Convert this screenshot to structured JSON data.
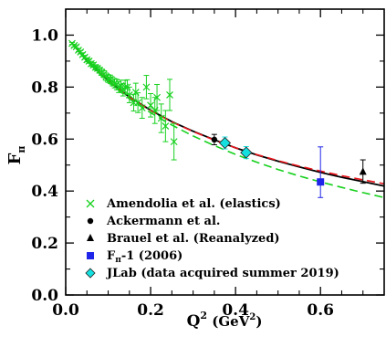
{
  "chart_data": {
    "type": "scatter",
    "xlabel": {
      "base": "Q",
      "sup": "2",
      "units_open": " (GeV",
      "units_sup": "2",
      "units_close": ")"
    },
    "ylabel": {
      "base": "F",
      "sub": "π"
    },
    "xlim": [
      0,
      0.75
    ],
    "ylim": [
      0,
      1.1
    ],
    "x_ticks": [
      0.0,
      0.2,
      0.4,
      0.6
    ],
    "x_tick_labels": [
      "0.0",
      "0.2",
      "0.4",
      "0.6"
    ],
    "y_ticks": [
      0.0,
      0.2,
      0.4,
      0.6,
      0.8,
      1.0
    ],
    "y_tick_labels": [
      "0.0",
      "0.2",
      "0.4",
      "0.6",
      "0.8",
      "1.0"
    ],
    "grid": false,
    "legend_position": "bottom-left",
    "curves": [
      {
        "id": "black-solid",
        "color": "#000000",
        "style": "solid",
        "x": [
          0.015,
          0.05,
          0.1,
          0.15,
          0.2,
          0.25,
          0.3,
          0.35,
          0.4,
          0.45,
          0.5,
          0.55,
          0.6,
          0.65,
          0.7,
          0.75
        ],
        "y": [
          0.968,
          0.901,
          0.825,
          0.762,
          0.711,
          0.667,
          0.63,
          0.597,
          0.566,
          0.539,
          0.515,
          0.493,
          0.472,
          0.453,
          0.436,
          0.419
        ]
      },
      {
        "id": "red-dashed",
        "color": "#e8141b",
        "style": "dashed",
        "x": [
          0.015,
          0.05,
          0.1,
          0.15,
          0.2,
          0.25,
          0.3,
          0.35,
          0.4,
          0.45,
          0.5,
          0.55,
          0.6,
          0.65,
          0.7,
          0.75
        ],
        "y": [
          0.968,
          0.901,
          0.824,
          0.761,
          0.71,
          0.666,
          0.629,
          0.596,
          0.566,
          0.54,
          0.517,
          0.496,
          0.477,
          0.459,
          0.443,
          0.428
        ]
      },
      {
        "id": "green-dashed",
        "color": "#17d11e",
        "style": "dashed",
        "x": [
          0.015,
          0.05,
          0.1,
          0.15,
          0.2,
          0.25,
          0.3,
          0.35,
          0.4,
          0.45,
          0.5,
          0.55,
          0.6,
          0.65,
          0.7,
          0.75
        ],
        "y": [
          0.968,
          0.899,
          0.82,
          0.755,
          0.701,
          0.654,
          0.612,
          0.575,
          0.541,
          0.511,
          0.483,
          0.458,
          0.435,
          0.414,
          0.394,
          0.375
        ]
      }
    ],
    "series": [
      {
        "name": "Amendolia et al. (elastics)",
        "marker": "x",
        "color": "#17d11e",
        "points": [
          {
            "x": 0.015,
            "y": 0.968,
            "err": 0.004
          },
          {
            "x": 0.02,
            "y": 0.96,
            "err": 0.005
          },
          {
            "x": 0.025,
            "y": 0.955,
            "err": 0.005
          },
          {
            "x": 0.03,
            "y": 0.942,
            "err": 0.006
          },
          {
            "x": 0.035,
            "y": 0.935,
            "err": 0.006
          },
          {
            "x": 0.04,
            "y": 0.925,
            "err": 0.007
          },
          {
            "x": 0.045,
            "y": 0.915,
            "err": 0.007
          },
          {
            "x": 0.05,
            "y": 0.905,
            "err": 0.008
          },
          {
            "x": 0.055,
            "y": 0.9,
            "err": 0.008
          },
          {
            "x": 0.06,
            "y": 0.89,
            "err": 0.009
          },
          {
            "x": 0.065,
            "y": 0.885,
            "err": 0.009
          },
          {
            "x": 0.07,
            "y": 0.876,
            "err": 0.01
          },
          {
            "x": 0.075,
            "y": 0.872,
            "err": 0.01
          },
          {
            "x": 0.08,
            "y": 0.865,
            "err": 0.011
          },
          {
            "x": 0.085,
            "y": 0.857,
            "err": 0.012
          },
          {
            "x": 0.09,
            "y": 0.85,
            "err": 0.013
          },
          {
            "x": 0.095,
            "y": 0.84,
            "err": 0.014
          },
          {
            "x": 0.1,
            "y": 0.833,
            "err": 0.015
          },
          {
            "x": 0.105,
            "y": 0.83,
            "err": 0.016
          },
          {
            "x": 0.11,
            "y": 0.822,
            "err": 0.017
          },
          {
            "x": 0.115,
            "y": 0.815,
            "err": 0.018
          },
          {
            "x": 0.12,
            "y": 0.81,
            "err": 0.02
          },
          {
            "x": 0.125,
            "y": 0.8,
            "err": 0.021
          },
          {
            "x": 0.13,
            "y": 0.805,
            "err": 0.022
          },
          {
            "x": 0.135,
            "y": 0.79,
            "err": 0.024
          },
          {
            "x": 0.14,
            "y": 0.8,
            "err": 0.026
          },
          {
            "x": 0.145,
            "y": 0.8,
            "err": 0.028
          },
          {
            "x": 0.15,
            "y": 0.77,
            "err": 0.03
          },
          {
            "x": 0.16,
            "y": 0.74,
            "err": 0.032
          },
          {
            "x": 0.165,
            "y": 0.78,
            "err": 0.035
          },
          {
            "x": 0.17,
            "y": 0.74,
            "err": 0.038
          },
          {
            "x": 0.18,
            "y": 0.72,
            "err": 0.04
          },
          {
            "x": 0.19,
            "y": 0.8,
            "err": 0.045
          },
          {
            "x": 0.2,
            "y": 0.73,
            "err": 0.045
          },
          {
            "x": 0.21,
            "y": 0.71,
            "err": 0.05
          },
          {
            "x": 0.215,
            "y": 0.76,
            "err": 0.05
          },
          {
            "x": 0.225,
            "y": 0.68,
            "err": 0.055
          },
          {
            "x": 0.235,
            "y": 0.65,
            "err": 0.06
          },
          {
            "x": 0.245,
            "y": 0.77,
            "err": 0.06
          },
          {
            "x": 0.255,
            "y": 0.59,
            "err": 0.07
          }
        ]
      },
      {
        "name": "Ackermann et al.",
        "marker": "circle",
        "color": "#000000",
        "points": [
          {
            "x": 0.35,
            "y": 0.598,
            "err": 0.02
          }
        ]
      },
      {
        "name": "Brauel et al. (Reanalyzed)",
        "marker": "triangle",
        "color": "#000000",
        "points": [
          {
            "x": 0.7,
            "y": 0.475,
            "err": 0.045
          }
        ]
      },
      {
        "name_parts": [
          "F",
          "π",
          "-1 (2006)"
        ],
        "marker": "square",
        "color": "#1f25e8",
        "points": [
          {
            "x": 0.6,
            "y": 0.435,
            "err_up": 0.135,
            "err_down": 0.06
          }
        ]
      },
      {
        "name": "JLab (data acquired summer 2019)",
        "marker": "diamond",
        "color": "#14e0e0",
        "points": [
          {
            "x": 0.375,
            "y": 0.585,
            "err": 0.023
          },
          {
            "x": 0.425,
            "y": 0.548,
            "err": 0.023
          }
        ]
      }
    ]
  }
}
